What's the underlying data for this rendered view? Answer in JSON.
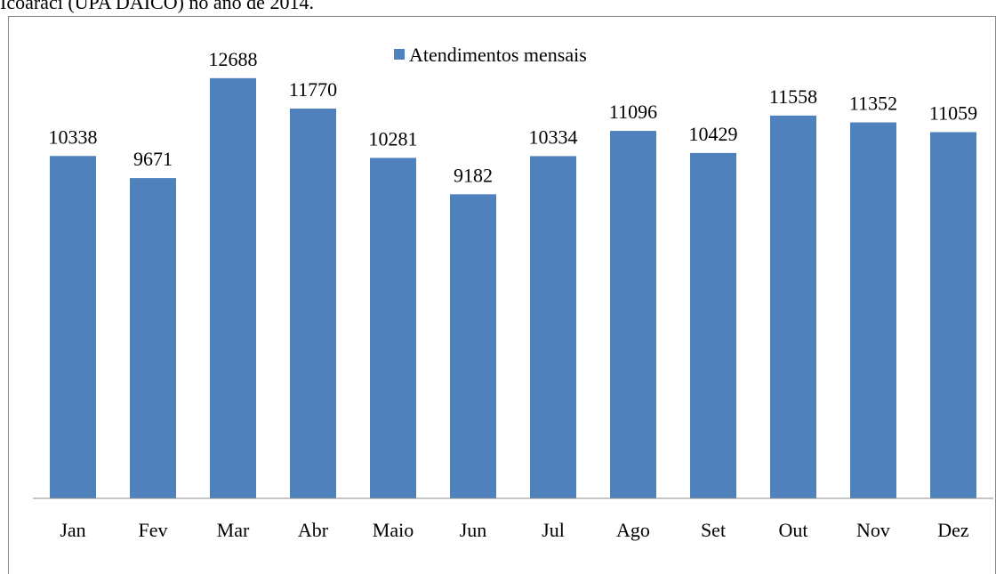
{
  "caption": "Icoaraci (UPA DAICO) no ano de 2014.",
  "chart_data": {
    "type": "bar",
    "categories": [
      "Jan",
      "Fev",
      "Mar",
      "Abr",
      "Maio",
      "Jun",
      "Jul",
      "Ago",
      "Set",
      "Out",
      "Nov",
      "Dez"
    ],
    "series": [
      {
        "name": "Atendimentos mensais",
        "color": "#4f81bd",
        "values": [
          10338,
          9671,
          12688,
          11770,
          10281,
          9182,
          10334,
          11096,
          10429,
          11558,
          11352,
          11059
        ]
      }
    ],
    "ylim": [
      0,
      14000
    ],
    "legend": "top"
  }
}
